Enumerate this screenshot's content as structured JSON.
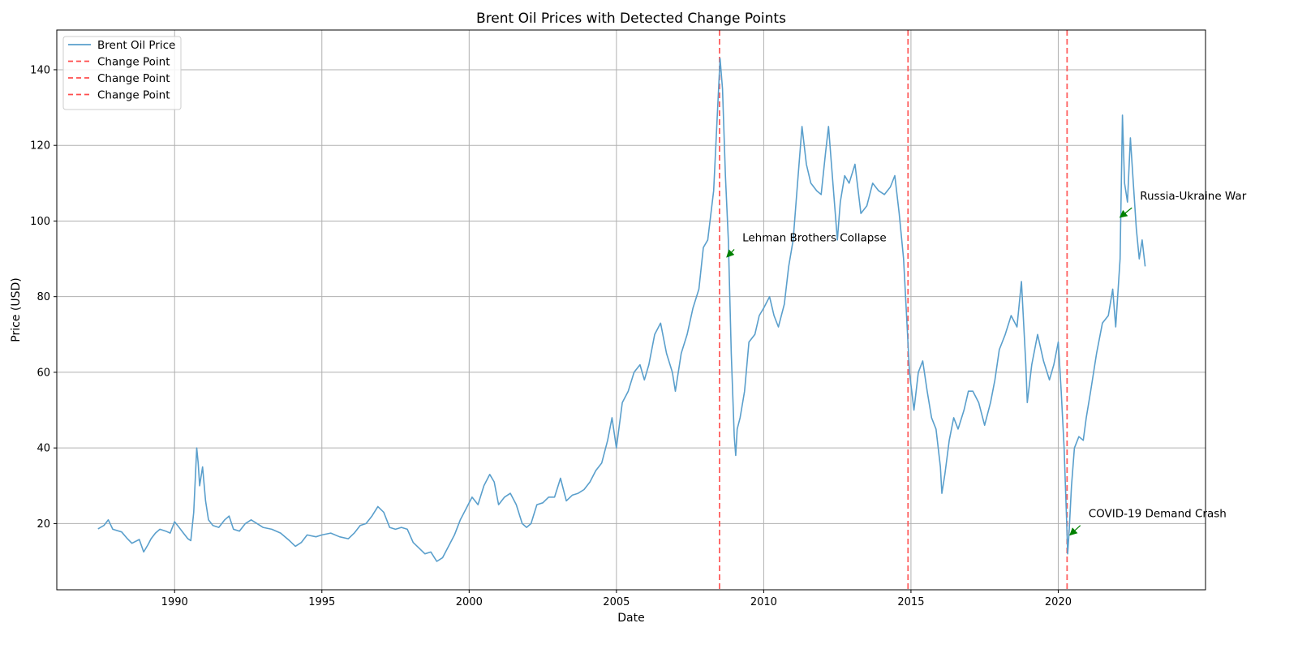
{
  "chart_data": {
    "type": "line",
    "title": "Brent Oil Prices with Detected Change Points",
    "xlabel": "Date",
    "ylabel": "Price (USD)",
    "xlim": [
      1986.0,
      2025.0
    ],
    "ylim": [
      2.5,
      150.5
    ],
    "xticks": [
      1990,
      1995,
      2000,
      2005,
      2010,
      2015,
      2020
    ],
    "xtick_labels": [
      "1990",
      "1995",
      "2000",
      "2005",
      "2010",
      "2015",
      "2020"
    ],
    "yticks": [
      20,
      40,
      60,
      80,
      100,
      120,
      140
    ],
    "ytick_labels": [
      "20",
      "40",
      "60",
      "80",
      "100",
      "120",
      "140"
    ],
    "grid": true,
    "legend_position": "top-left",
    "series": [
      {
        "name": "Brent Oil Price",
        "color": "#5a9fcc",
        "style": "solid",
        "points": [
          [
            1987.4,
            18.6
          ],
          [
            1987.6,
            19.5
          ],
          [
            1987.75,
            21.0
          ],
          [
            1987.9,
            18.5
          ],
          [
            1988.2,
            17.8
          ],
          [
            1988.4,
            16.0
          ],
          [
            1988.55,
            14.8
          ],
          [
            1988.8,
            15.8
          ],
          [
            1988.95,
            12.5
          ],
          [
            1989.1,
            14.5
          ],
          [
            1989.2,
            16.0
          ],
          [
            1989.35,
            17.5
          ],
          [
            1989.5,
            18.5
          ],
          [
            1989.7,
            18.0
          ],
          [
            1989.85,
            17.5
          ],
          [
            1990.0,
            20.5
          ],
          [
            1990.1,
            19.5
          ],
          [
            1990.3,
            17.5
          ],
          [
            1990.45,
            16.0
          ],
          [
            1990.55,
            15.5
          ],
          [
            1990.65,
            23.0
          ],
          [
            1990.75,
            40.0
          ],
          [
            1990.8,
            36.0
          ],
          [
            1990.85,
            30.0
          ],
          [
            1990.95,
            35.0
          ],
          [
            1991.05,
            26.0
          ],
          [
            1991.15,
            21.0
          ],
          [
            1991.3,
            19.5
          ],
          [
            1991.5,
            19.0
          ],
          [
            1991.7,
            21.0
          ],
          [
            1991.85,
            22.0
          ],
          [
            1992.0,
            18.5
          ],
          [
            1992.2,
            18.0
          ],
          [
            1992.4,
            20.0
          ],
          [
            1992.6,
            21.0
          ],
          [
            1992.8,
            20.0
          ],
          [
            1993.0,
            19.0
          ],
          [
            1993.3,
            18.5
          ],
          [
            1993.6,
            17.5
          ],
          [
            1993.9,
            15.5
          ],
          [
            1994.1,
            14.0
          ],
          [
            1994.3,
            15.0
          ],
          [
            1994.5,
            17.0
          ],
          [
            1994.8,
            16.5
          ],
          [
            1995.0,
            17.0
          ],
          [
            1995.3,
            17.5
          ],
          [
            1995.6,
            16.5
          ],
          [
            1995.9,
            16.0
          ],
          [
            1996.1,
            17.5
          ],
          [
            1996.3,
            19.5
          ],
          [
            1996.5,
            20.0
          ],
          [
            1996.7,
            22.0
          ],
          [
            1996.9,
            24.5
          ],
          [
            1997.1,
            23.0
          ],
          [
            1997.3,
            19.0
          ],
          [
            1997.5,
            18.5
          ],
          [
            1997.7,
            19.0
          ],
          [
            1997.9,
            18.5
          ],
          [
            1998.1,
            15.0
          ],
          [
            1998.3,
            13.5
          ],
          [
            1998.5,
            12.0
          ],
          [
            1998.7,
            12.5
          ],
          [
            1998.9,
            10.0
          ],
          [
            1999.1,
            11.0
          ],
          [
            1999.3,
            14.0
          ],
          [
            1999.5,
            17.0
          ],
          [
            1999.7,
            21.0
          ],
          [
            1999.9,
            24.0
          ],
          [
            2000.1,
            27.0
          ],
          [
            2000.3,
            25.0
          ],
          [
            2000.5,
            30.0
          ],
          [
            2000.7,
            33.0
          ],
          [
            2000.85,
            31.0
          ],
          [
            2001.0,
            25.0
          ],
          [
            2001.2,
            27.0
          ],
          [
            2001.4,
            28.0
          ],
          [
            2001.6,
            25.0
          ],
          [
            2001.8,
            20.0
          ],
          [
            2001.95,
            19.0
          ],
          [
            2002.1,
            20.0
          ],
          [
            2002.3,
            25.0
          ],
          [
            2002.5,
            25.5
          ],
          [
            2002.7,
            27.0
          ],
          [
            2002.9,
            27.0
          ],
          [
            2003.1,
            32.0
          ],
          [
            2003.3,
            26.0
          ],
          [
            2003.5,
            27.5
          ],
          [
            2003.7,
            28.0
          ],
          [
            2003.9,
            29.0
          ],
          [
            2004.1,
            31.0
          ],
          [
            2004.3,
            34.0
          ],
          [
            2004.5,
            36.0
          ],
          [
            2004.7,
            42.0
          ],
          [
            2004.85,
            48.0
          ],
          [
            2005.0,
            40.0
          ],
          [
            2005.2,
            52.0
          ],
          [
            2005.4,
            55.0
          ],
          [
            2005.6,
            60.0
          ],
          [
            2005.8,
            62.0
          ],
          [
            2005.95,
            58.0
          ],
          [
            2006.1,
            62.0
          ],
          [
            2006.3,
            70.0
          ],
          [
            2006.5,
            73.0
          ],
          [
            2006.7,
            65.0
          ],
          [
            2006.9,
            60.0
          ],
          [
            2007.0,
            55.0
          ],
          [
            2007.2,
            65.0
          ],
          [
            2007.4,
            70.0
          ],
          [
            2007.6,
            77.0
          ],
          [
            2007.8,
            82.0
          ],
          [
            2007.95,
            93.0
          ],
          [
            2008.1,
            95.0
          ],
          [
            2008.3,
            108.0
          ],
          [
            2008.45,
            132.0
          ],
          [
            2008.52,
            143.0
          ],
          [
            2008.6,
            135.0
          ],
          [
            2008.7,
            112.0
          ],
          [
            2008.8,
            95.0
          ],
          [
            2008.9,
            65.0
          ],
          [
            2009.0,
            43.0
          ],
          [
            2009.05,
            38.0
          ],
          [
            2009.1,
            45.0
          ],
          [
            2009.2,
            48.0
          ],
          [
            2009.35,
            55.0
          ],
          [
            2009.5,
            68.0
          ],
          [
            2009.7,
            70.0
          ],
          [
            2009.85,
            75.0
          ],
          [
            2010.0,
            77.0
          ],
          [
            2010.2,
            80.0
          ],
          [
            2010.35,
            75.0
          ],
          [
            2010.5,
            72.0
          ],
          [
            2010.7,
            78.0
          ],
          [
            2010.85,
            88.0
          ],
          [
            2011.0,
            95.0
          ],
          [
            2011.15,
            110.0
          ],
          [
            2011.3,
            125.0
          ],
          [
            2011.45,
            115.0
          ],
          [
            2011.6,
            110.0
          ],
          [
            2011.8,
            108.0
          ],
          [
            2011.95,
            107.0
          ],
          [
            2012.1,
            118.0
          ],
          [
            2012.2,
            125.0
          ],
          [
            2012.35,
            110.0
          ],
          [
            2012.5,
            95.0
          ],
          [
            2012.6,
            105.0
          ],
          [
            2012.75,
            112.0
          ],
          [
            2012.9,
            110.0
          ],
          [
            2013.1,
            115.0
          ],
          [
            2013.3,
            102.0
          ],
          [
            2013.5,
            104.0
          ],
          [
            2013.7,
            110.0
          ],
          [
            2013.9,
            108.0
          ],
          [
            2014.1,
            107.0
          ],
          [
            2014.3,
            109.0
          ],
          [
            2014.45,
            112.0
          ],
          [
            2014.6,
            102.0
          ],
          [
            2014.75,
            90.0
          ],
          [
            2014.85,
            75.0
          ],
          [
            2014.95,
            60.0
          ],
          [
            2015.1,
            50.0
          ],
          [
            2015.25,
            60.0
          ],
          [
            2015.4,
            63.0
          ],
          [
            2015.55,
            55.0
          ],
          [
            2015.7,
            48.0
          ],
          [
            2015.85,
            45.0
          ],
          [
            2016.0,
            35.0
          ],
          [
            2016.05,
            28.0
          ],
          [
            2016.15,
            33.0
          ],
          [
            2016.3,
            42.0
          ],
          [
            2016.45,
            48.0
          ],
          [
            2016.6,
            45.0
          ],
          [
            2016.8,
            50.0
          ],
          [
            2016.95,
            55.0
          ],
          [
            2017.1,
            55.0
          ],
          [
            2017.3,
            52.0
          ],
          [
            2017.5,
            46.0
          ],
          [
            2017.7,
            52.0
          ],
          [
            2017.85,
            58.0
          ],
          [
            2018.0,
            66.0
          ],
          [
            2018.2,
            70.0
          ],
          [
            2018.4,
            75.0
          ],
          [
            2018.6,
            72.0
          ],
          [
            2018.75,
            84.0
          ],
          [
            2018.9,
            62.0
          ],
          [
            2018.95,
            52.0
          ],
          [
            2019.1,
            62.0
          ],
          [
            2019.3,
            70.0
          ],
          [
            2019.5,
            63.0
          ],
          [
            2019.7,
            58.0
          ],
          [
            2019.85,
            62.0
          ],
          [
            2020.0,
            68.0
          ],
          [
            2020.1,
            55.0
          ],
          [
            2020.2,
            40.0
          ],
          [
            2020.28,
            22.0
          ],
          [
            2020.32,
            12.0
          ],
          [
            2020.37,
            18.0
          ],
          [
            2020.45,
            30.0
          ],
          [
            2020.55,
            40.0
          ],
          [
            2020.7,
            43.0
          ],
          [
            2020.85,
            42.0
          ],
          [
            2020.95,
            48.0
          ],
          [
            2021.1,
            55.0
          ],
          [
            2021.3,
            65.0
          ],
          [
            2021.5,
            73.0
          ],
          [
            2021.7,
            75.0
          ],
          [
            2021.85,
            82.0
          ],
          [
            2021.95,
            72.0
          ],
          [
            2022.1,
            90.0
          ],
          [
            2022.18,
            128.0
          ],
          [
            2022.25,
            110.0
          ],
          [
            2022.35,
            105.0
          ],
          [
            2022.45,
            122.0
          ],
          [
            2022.55,
            110.0
          ],
          [
            2022.65,
            98.0
          ],
          [
            2022.75,
            90.0
          ],
          [
            2022.85,
            95.0
          ],
          [
            2022.95,
            88.0
          ]
        ]
      }
    ],
    "change_points": [
      {
        "name": "Change Point",
        "x": 2008.5,
        "color": "#ff4d4d"
      },
      {
        "name": "Change Point",
        "x": 2014.9,
        "color": "#ff4d4d"
      },
      {
        "name": "Change Point",
        "x": 2020.3,
        "color": "#ff4d4d"
      }
    ],
    "annotations": [
      {
        "text": "Lehman Brothers Collapse",
        "x": 2008.75,
        "y": 90.5,
        "text_x": 2009.0,
        "text_y": 92.5
      },
      {
        "text": "COVID-19 Demand Crash",
        "x": 2020.4,
        "y": 17.0,
        "text_x": 2020.75,
        "text_y": 19.5
      },
      {
        "text": "Russia-Ukraine War",
        "x": 2022.1,
        "y": 101.0,
        "text_x": 2022.5,
        "text_y": 103.5
      }
    ],
    "legend": [
      "Brent Oil Price",
      "Change Point",
      "Change Point",
      "Change Point"
    ]
  }
}
